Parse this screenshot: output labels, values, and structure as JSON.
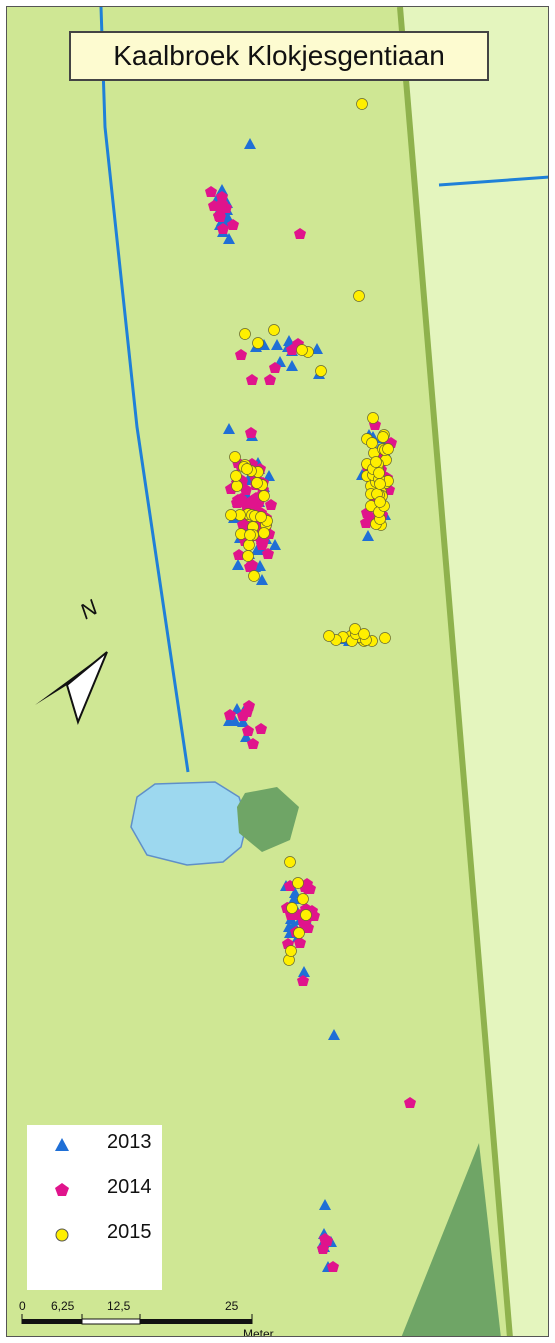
{
  "title": "Kaalbroek Klokjesgentiaan",
  "north_label": "N",
  "legend": [
    {
      "label": "2013",
      "symbol": "triangle",
      "color": "#1f6fd6"
    },
    {
      "label": "2014",
      "symbol": "pentagon",
      "color": "#e0148c"
    },
    {
      "label": "2015",
      "symbol": "circle",
      "color": "#ffef00"
    }
  ],
  "scale_bar": {
    "ticks": [
      "0",
      "6,25",
      "12,5",
      "25"
    ],
    "unit": "Meter"
  },
  "colors": {
    "field": "#cfe794",
    "outside": "#e4f5be",
    "path": "#8fb24d",
    "water_line": "#1f80d8",
    "pond": "#9dd8ef",
    "dark_vegetation": "#6fa566"
  }
}
